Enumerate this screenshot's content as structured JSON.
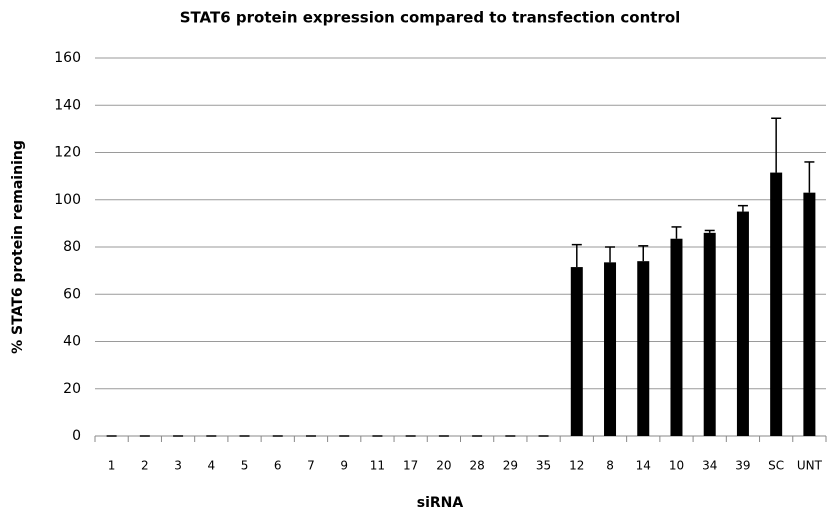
{
  "chart_data": {
    "type": "bar",
    "title": "STAT6 protein expression compared to transfection control",
    "xlabel": "siRNA",
    "ylabel": "% STAT6 protein remaining",
    "categories": [
      "1",
      "2",
      "3",
      "4",
      "5",
      "6",
      "7",
      "9",
      "11",
      "17",
      "20",
      "28",
      "29",
      "35",
      "12",
      "8",
      "14",
      "10",
      "34",
      "39",
      "SC",
      "UNT"
    ],
    "values": [
      0,
      0,
      0,
      0,
      0,
      0,
      0,
      0,
      0,
      0,
      0,
      0,
      0,
      0,
      71.5,
      73.5,
      74,
      83.5,
      86,
      95,
      111.5,
      103
    ],
    "errors": [
      0,
      0,
      0,
      0,
      0,
      0,
      0,
      0,
      0,
      0,
      0,
      0,
      0,
      0,
      9.5,
      6.5,
      6.5,
      5,
      1,
      2.5,
      23,
      13
    ],
    "color": "#000000",
    "ylim": [
      0,
      160
    ],
    "yticks": [
      0,
      20,
      40,
      60,
      80,
      100,
      120,
      140,
      160
    ],
    "grid": true
  }
}
